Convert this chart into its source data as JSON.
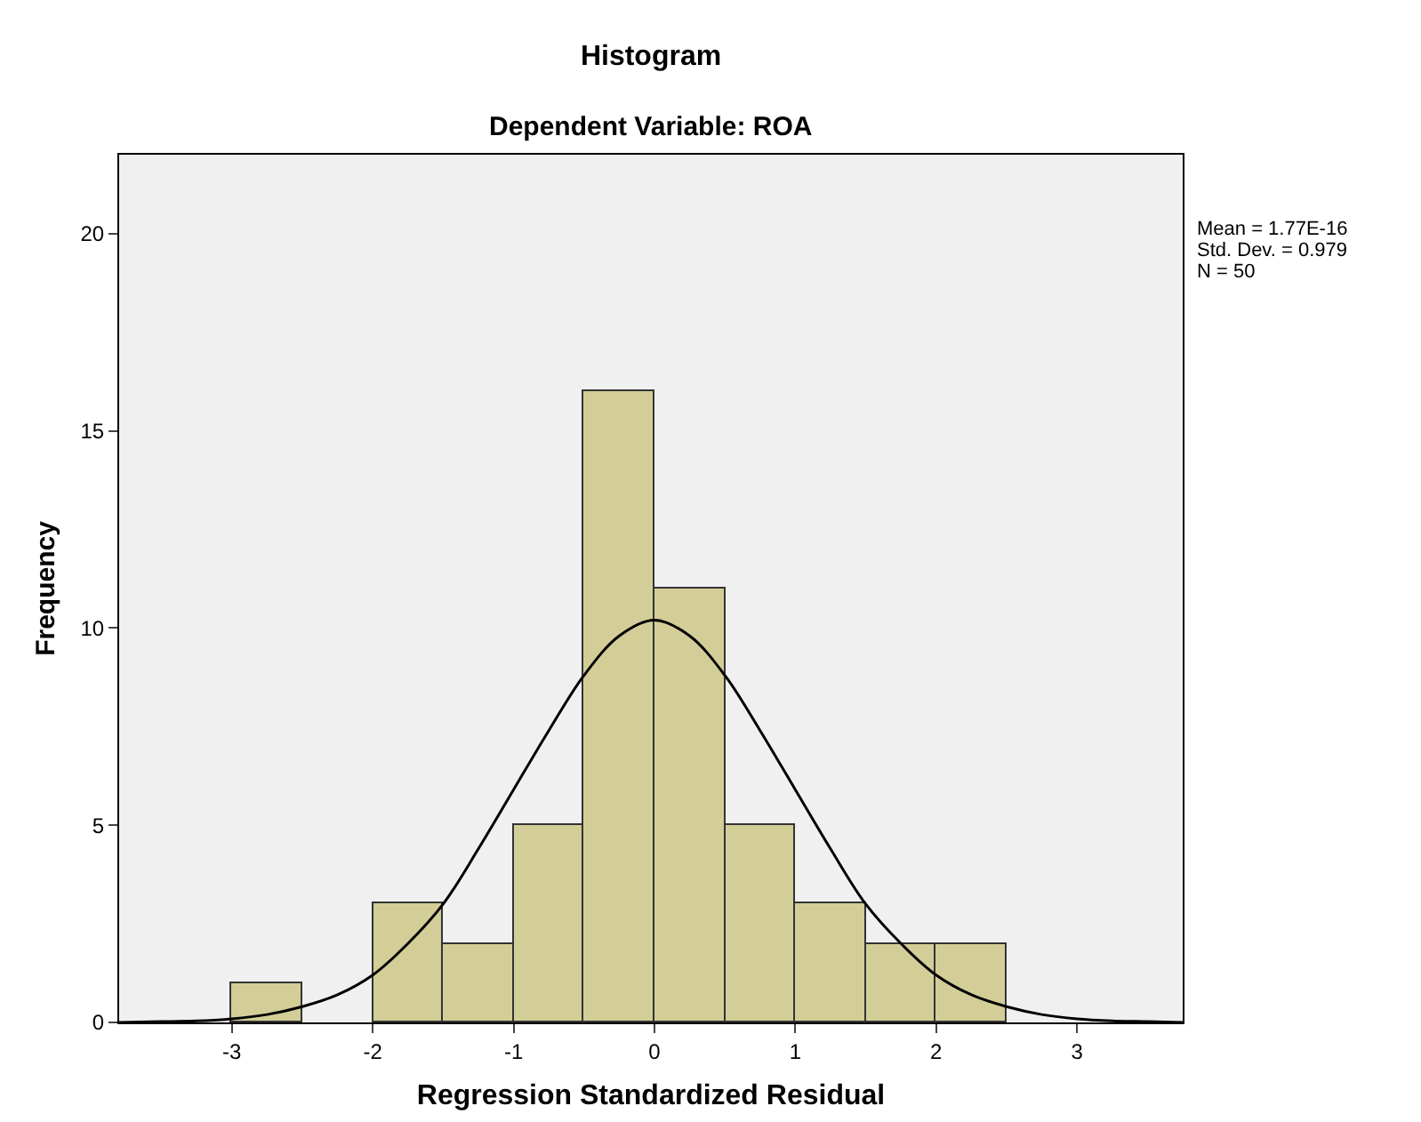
{
  "chart_data": {
    "type": "histogram",
    "title": "Histogram",
    "subtitle": "Dependent Variable: ROA",
    "xlabel": "Regression Standardized Residual",
    "ylabel": "Frequency",
    "bins": [
      -3,
      -2.5,
      -2,
      -1.5,
      -1,
      -0.5,
      0,
      0.5,
      1,
      1.5,
      2,
      2.5
    ],
    "values": [
      1,
      0,
      3,
      2,
      5,
      16,
      11,
      5,
      3,
      2,
      2
    ],
    "color": "#d3ce97",
    "series": [
      {
        "type": "line",
        "color": "#000000",
        "x": [
          -3.8,
          -3.5,
          -3.25,
          -3,
          -2.75,
          -2.5,
          -2.25,
          -2,
          -1.75,
          -1.5,
          -1.25,
          -1,
          -0.75,
          -0.5,
          -0.25,
          0,
          0.25,
          0.5,
          0.75,
          1,
          1.25,
          1.5,
          1.75,
          2,
          2.25,
          2.5,
          2.75,
          3,
          3.25,
          3.5,
          3.75
        ],
        "values": [
          0,
          0.02,
          0.04,
          0.09,
          0.2,
          0.4,
          0.7,
          1.2,
          2,
          3,
          4.4,
          5.9,
          7.4,
          8.8,
          9.8,
          10.2,
          9.8,
          8.8,
          7.4,
          5.9,
          4.4,
          3,
          2,
          1.2,
          0.7,
          0.4,
          0.2,
          0.09,
          0.04,
          0.02,
          0
        ]
      }
    ],
    "xlim": [
      -3.8,
      3.75
    ],
    "xticks": [
      -3,
      -2,
      -1,
      0,
      1,
      2,
      3
    ],
    "ylim": [
      0,
      22
    ],
    "yticks": [
      0,
      5,
      10,
      15,
      20
    ],
    "grid": false,
    "legend": false,
    "annotations": [
      "Mean = 1.77E-16",
      "Std. Dev. = 0.979",
      "N = 50"
    ]
  }
}
